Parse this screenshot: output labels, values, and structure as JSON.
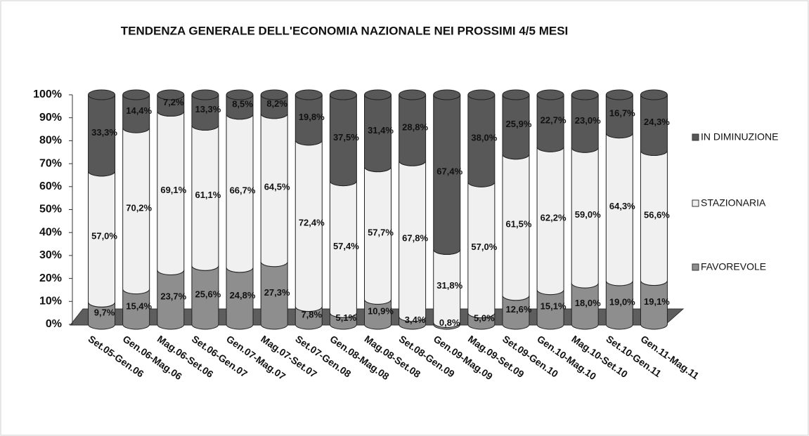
{
  "chart_data": {
    "type": "stacked-bar",
    "title": "TENDENZA GENERALE DELL'ECONOMIA NAZIONALE NEI PROSSIMI 4/5 MESI",
    "categories": [
      "Set.05-Gen.06",
      "Gen.06-Mag.06",
      "Mag.06-Set.06",
      "Set.06-Gen.07",
      "Gen.07-Mag.07",
      "Mag.07-Set.07",
      "Set.07-Gen.08",
      "Gen.08-Mag.08",
      "Mag.08-Set.08",
      "Set.08-Gen.09",
      "Gen.09-Mag.09",
      "Mag.09-Set.09",
      "Set.09-Gen.10",
      "Gen.10-Mag.10",
      "Mag.10-Set.10",
      "Set.10-Gen.11",
      "Gen.11-Mag.11"
    ],
    "series": [
      {
        "name": "FAVOREVOLE",
        "color": "#8e8e8e",
        "values": [
          9.7,
          15.4,
          23.7,
          25.6,
          24.8,
          27.3,
          7.8,
          5.1,
          10.9,
          3.4,
          0.8,
          5.0,
          12.6,
          15.1,
          18.0,
          19.0,
          19.1
        ],
        "value_labels": [
          "9,7%",
          "15,4%",
          "23,7%",
          "25,6%",
          "24,8%",
          "27,3%",
          "7,8%",
          "5,1%",
          "10,9%",
          "3,4%",
          "0,8%",
          "5,0%",
          "12,6%",
          "15,1%",
          "18,0%",
          "19,0%",
          "19,1%"
        ]
      },
      {
        "name": "STAZIONARIA",
        "color": "#f0f0f0",
        "values": [
          57.0,
          70.2,
          69.1,
          61.1,
          66.7,
          64.5,
          72.4,
          57.4,
          57.7,
          67.8,
          31.8,
          57.0,
          61.5,
          62.2,
          59.0,
          64.3,
          56.6
        ],
        "value_labels": [
          "57,0%",
          "70,2%",
          "69,1%",
          "61,1%",
          "66,7%",
          "64,5%",
          "72,4%",
          "57,4%",
          "57,7%",
          "67,8%",
          "31,8%",
          "57,0%",
          "61,5%",
          "62,2%",
          "59,0%",
          "64,3%",
          "56,6%"
        ]
      },
      {
        "name": "IN DIMINUZIONE",
        "color": "#585858",
        "values": [
          33.3,
          14.4,
          7.2,
          13.3,
          8.5,
          8.2,
          19.8,
          37.5,
          31.4,
          28.8,
          67.4,
          38.0,
          25.9,
          22.7,
          23.0,
          16.7,
          24.3
        ],
        "value_labels": [
          "33,3%",
          "14,4%",
          "7,2%",
          "13,3%",
          "8,5%",
          "8,2%",
          "19,8%",
          "37,5%",
          "31,4%",
          "28,8%",
          "67,4%",
          "38,0%",
          "25,9%",
          "22,7%",
          "23,0%",
          "16,7%",
          "24,3%"
        ]
      }
    ],
    "ylim": [
      0,
      100
    ],
    "yticks": [
      {
        "value": 0,
        "label": "0%"
      },
      {
        "value": 10,
        "label": "10%"
      },
      {
        "value": 20,
        "label": "20%"
      },
      {
        "value": 30,
        "label": "30%"
      },
      {
        "value": 40,
        "label": "40%"
      },
      {
        "value": 50,
        "label": "50%"
      },
      {
        "value": 60,
        "label": "60%"
      },
      {
        "value": 70,
        "label": "70%"
      },
      {
        "value": 80,
        "label": "80%"
      },
      {
        "value": 90,
        "label": "90%"
      },
      {
        "value": 100,
        "label": "100%"
      }
    ],
    "grid": false,
    "legend": "right"
  }
}
